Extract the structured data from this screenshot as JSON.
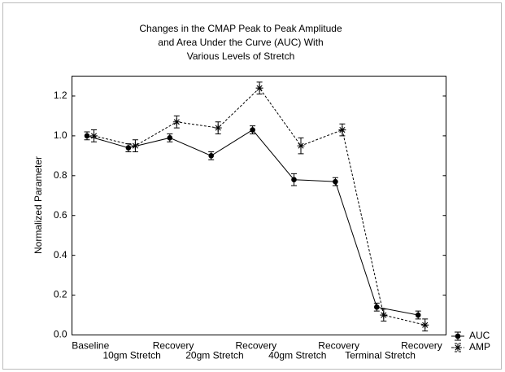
{
  "chart_data": {
    "type": "line",
    "title": [
      "Changes in the CMAP Peak to Peak Amplitude",
      "and Area Under the Curve (AUC) With",
      "Various Levels of Stretch"
    ],
    "ylabel": "Normalized Parameter",
    "categories": [
      "Baseline",
      "10gm Stretch",
      "Recovery",
      "20gm Stretch",
      "Recovery",
      "40gm Stretch",
      "Recovery",
      "Terminal Stretch",
      "Recovery"
    ],
    "series": [
      {
        "name": "AUC",
        "color": "#000000",
        "dash": "solid",
        "marker": "circle",
        "values": [
          1.0,
          0.94,
          0.99,
          0.9,
          1.03,
          0.78,
          0.77,
          0.14,
          0.1
        ],
        "errors": [
          0.02,
          0.02,
          0.02,
          0.02,
          0.02,
          0.03,
          0.02,
          0.02,
          0.02
        ]
      },
      {
        "name": "AMP",
        "color": "#000000",
        "dash": "dashed",
        "marker": "star",
        "values": [
          1.0,
          0.95,
          1.07,
          1.04,
          1.24,
          0.95,
          1.03,
          0.1,
          0.05
        ],
        "errors": [
          0.03,
          0.03,
          0.03,
          0.03,
          0.03,
          0.04,
          0.03,
          0.03,
          0.03
        ]
      }
    ],
    "ylim": [
      0,
      1.3
    ],
    "yticks": [
      {
        "value": 0,
        "label": "0.0"
      },
      0.2,
      0.4,
      0.6,
      0.8,
      {
        "value": 1.0,
        "label": "1.0"
      },
      1.2
    ],
    "grid": false,
    "legend": "lower right outside"
  }
}
